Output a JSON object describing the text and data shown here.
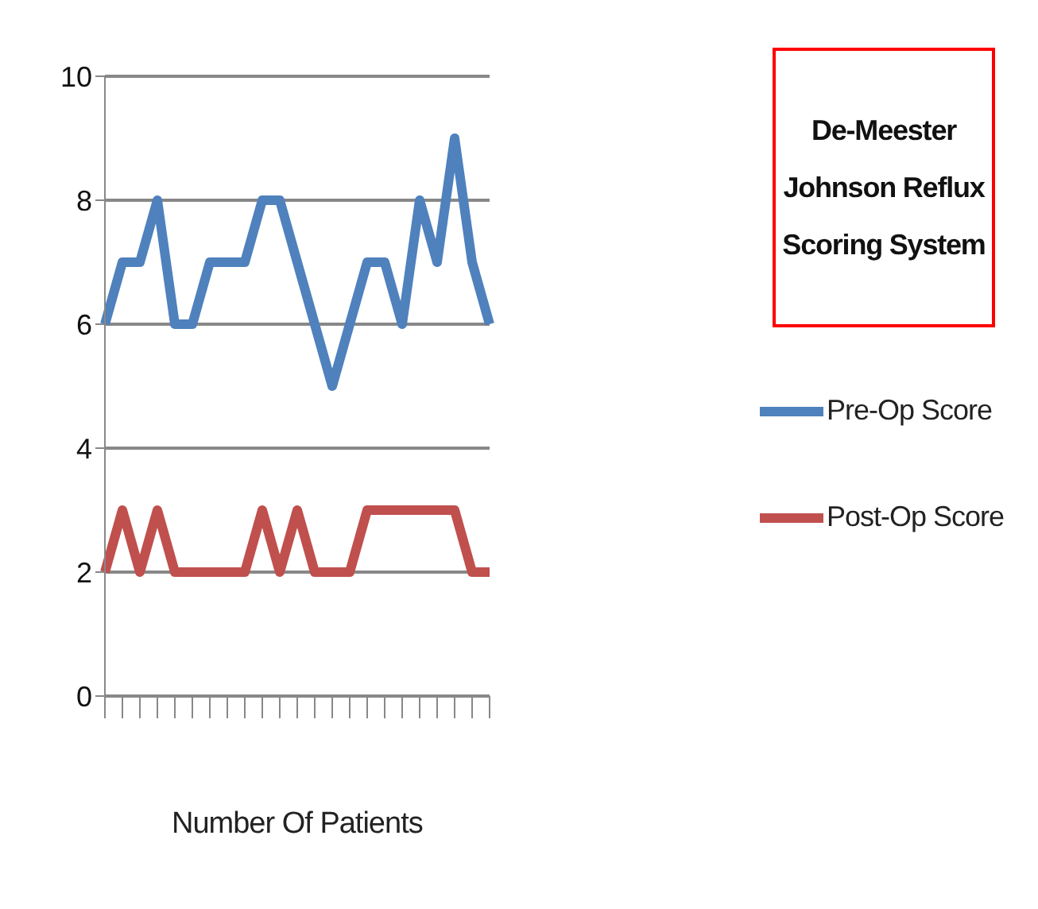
{
  "chart_data": {
    "type": "line",
    "title": "De-Meester Johnson Reflux Scoring System",
    "xlabel": "Number Of Patients",
    "categories": [
      null,
      null,
      null,
      null,
      null,
      null,
      null,
      null,
      null,
      null,
      null,
      null,
      null,
      null,
      null,
      null,
      null,
      null,
      null,
      null,
      null,
      null,
      null
    ],
    "series": [
      {
        "name": "Pre-Op Score",
        "color": "#4f81bd",
        "values": [
          6,
          7,
          7,
          8,
          6,
          6,
          7,
          7,
          7,
          8,
          8,
          7,
          6,
          5,
          6,
          7,
          7,
          6,
          8,
          7,
          9,
          7,
          6
        ]
      },
      {
        "name": "Post-Op Score",
        "color": "#c0504d",
        "values": [
          2,
          3,
          2,
          3,
          2,
          2,
          2,
          2,
          2,
          3,
          2,
          3,
          2,
          2,
          2,
          3,
          3,
          3,
          3,
          3,
          3,
          2,
          2
        ]
      }
    ],
    "ylim": [
      0,
      10
    ],
    "yticks": [
      0,
      2,
      4,
      6,
      8,
      10
    ],
    "grid": "y",
    "legend": "right",
    "marker": "none",
    "line_style": "solid"
  }
}
